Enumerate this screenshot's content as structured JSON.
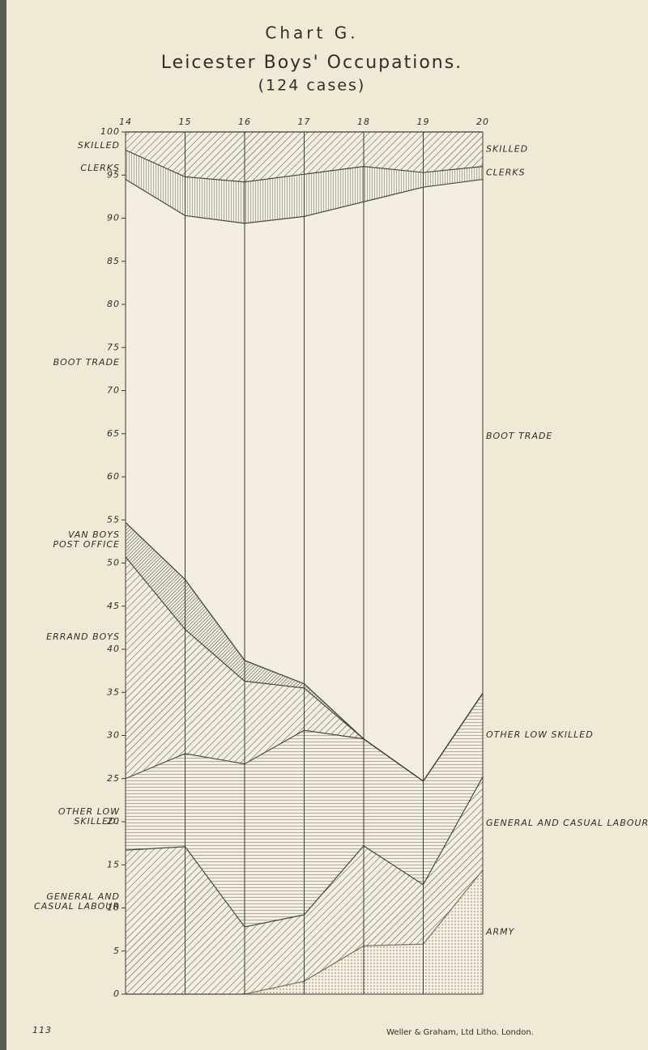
{
  "chart_data": {
    "type": "stacked_area",
    "title": "Chart G.",
    "subtitle": "Leicester Boys' Occupations.",
    "note": "(124 cases)",
    "x": [
      14,
      15,
      16,
      17,
      18,
      19,
      20
    ],
    "xlim": [
      14,
      20
    ],
    "xticks": [
      14,
      15,
      16,
      17,
      18,
      19,
      20
    ],
    "ylim": [
      0,
      100
    ],
    "yticks": [
      0,
      5,
      10,
      15,
      20,
      25,
      30,
      35,
      40,
      45,
      50,
      55,
      60,
      65,
      70,
      75,
      80,
      85,
      90,
      95,
      100
    ],
    "grid": true,
    "series": [
      {
        "name": "ARMY",
        "color": "#7a7560",
        "hatch": "dots",
        "values": [
          0,
          0,
          0,
          1.5,
          5.6,
          5.8,
          14.4
        ]
      },
      {
        "name": "GENERAL AND CASUAL LABOUR",
        "color": "#4a4a44",
        "hatch": "diagonal",
        "values": [
          16.7,
          17.1,
          7.8,
          7.7,
          11.6,
          6.9,
          10.8
        ]
      },
      {
        "name": "OTHER LOW SKILLED",
        "color": "#4a4a44",
        "hatch": "horizontal",
        "values": [
          8.3,
          10.8,
          18.9,
          21.4,
          12.4,
          12.0,
          9.7
        ]
      },
      {
        "color": "#4a4a44",
        "hatch": "diagonal",
        "values": [
          25.7,
          14.4,
          9.6,
          4.9,
          0,
          0,
          0
        ]
      },
      {
        "color": "#3a3a36",
        "hatch": "diagonal-dense",
        "values": [
          4.0,
          5.8,
          2.4,
          0.5,
          0,
          0,
          0
        ]
      },
      {
        "name": "BOOT TRADE",
        "color": "#4a4a44",
        "hatch": "none",
        "values": [
          39.8,
          42.2,
          50.7,
          54.2,
          62.3,
          68.9,
          59.6
        ]
      },
      {
        "name": "CLERKS",
        "color": "#4a4a44",
        "hatch": "vertical",
        "values": [
          3.4,
          4.5,
          4.8,
          4.9,
          4.1,
          1.7,
          1.5
        ]
      },
      {
        "name": "SKILLED",
        "color": "#4a4a44",
        "hatch": "diagonal",
        "values": [
          2.1,
          5.2,
          5.8,
          4.9,
          4.0,
          4.7,
          4.0
        ]
      }
    ],
    "left_labels": [
      "SKILLED",
      "CLERKS",
      "BOOT TRADE",
      "VAN BOYS",
      "POST OFFICE",
      "ERRAND BOYS",
      "OTHER LOW",
      "SKILLED.",
      "GENERAL AND",
      "CASUAL LABOUR"
    ],
    "page_number": "113",
    "imprint": "Weller & Graham, Ltd Litho. London."
  }
}
